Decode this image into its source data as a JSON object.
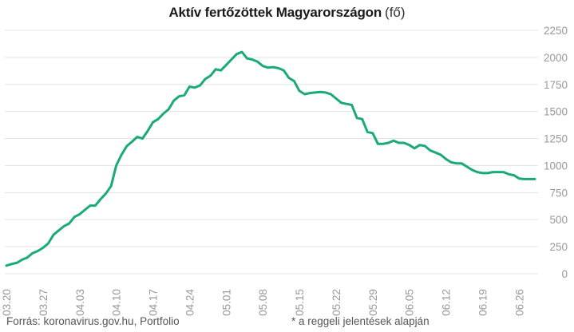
{
  "title": {
    "main": "Aktív fertőzöttek Magyarországon",
    "unit": "(fő)"
  },
  "footer": {
    "source": "Forrás: koronavirus.gov.hu, Portfolio",
    "note": "* a reggeli jelentések alapján"
  },
  "colors": {
    "line": "#1aaa78",
    "grid": "#e3e3e3",
    "tick_text": "#999999"
  },
  "chart_data": {
    "type": "line",
    "x_start": "2020-03-20",
    "x_tick_labels": [
      "03.20",
      "03.27",
      "04.03",
      "04.10",
      "04.17",
      "04.24",
      "05.01",
      "05.08",
      "05.15",
      "05.22",
      "05.29",
      "06.05",
      "06.12",
      "06.19",
      "06.26"
    ],
    "y_ticks": [
      0,
      250,
      500,
      750,
      1000,
      1250,
      1500,
      1750,
      2000,
      2250
    ],
    "ylim": [
      0,
      2250
    ],
    "y_axis_side": "right",
    "grid": "horizontal",
    "series": [
      {
        "values": [
          75,
          90,
          100,
          130,
          150,
          190,
          210,
          240,
          280,
          360,
          400,
          440,
          465,
          525,
          550,
          590,
          630,
          630,
          690,
          740,
          810,
          1000,
          1100,
          1180,
          1220,
          1265,
          1250,
          1320,
          1400,
          1430,
          1480,
          1520,
          1600,
          1640,
          1650,
          1730,
          1720,
          1740,
          1800,
          1830,
          1890,
          1880,
          1930,
          1980,
          2030,
          2050,
          1990,
          1980,
          1960,
          1920,
          1905,
          1910,
          1900,
          1880,
          1810,
          1780,
          1690,
          1660,
          1670,
          1675,
          1680,
          1675,
          1660,
          1620,
          1580,
          1570,
          1560,
          1440,
          1430,
          1310,
          1300,
          1200,
          1200,
          1210,
          1230,
          1210,
          1210,
          1190,
          1160,
          1190,
          1180,
          1140,
          1120,
          1100,
          1060,
          1030,
          1020,
          1020,
          990,
          960,
          940,
          930,
          930,
          940,
          940,
          940,
          920,
          910,
          880,
          875,
          875,
          875
        ]
      }
    ]
  }
}
